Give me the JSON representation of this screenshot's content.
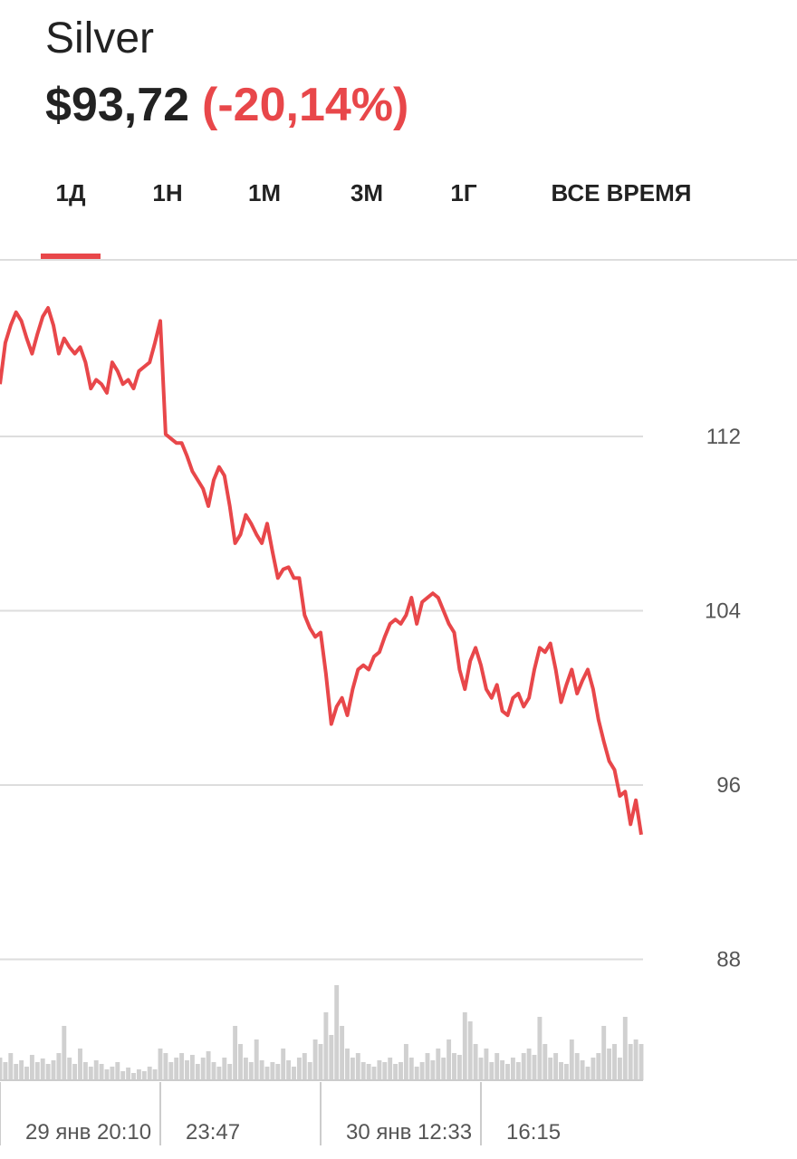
{
  "header": {
    "title": "Silver",
    "price": "$93,72",
    "change": "(-20,14%)"
  },
  "tabs": {
    "items": [
      "1Д",
      "1Н",
      "1М",
      "3М",
      "1Г",
      "ВСЕ ВРЕМЯ"
    ],
    "active": 0
  },
  "chart_data": {
    "type": "line",
    "color": "#e8474a",
    "values": [
      114.4,
      116.3,
      117.1,
      117.7,
      117.3,
      116.5,
      115.8,
      116.7,
      117.5,
      117.9,
      117.1,
      115.8,
      116.5,
      116.1,
      115.8,
      116.1,
      115.4,
      114.2,
      114.6,
      114.4,
      114.0,
      115.4,
      115.0,
      114.4,
      114.6,
      114.2,
      115.0,
      115.2,
      115.4,
      116.3,
      117.3,
      112.1,
      111.9,
      111.7,
      111.7,
      111.1,
      110.4,
      110.0,
      109.6,
      108.8,
      110.0,
      110.6,
      110.2,
      108.8,
      107.1,
      107.5,
      108.4,
      108.0,
      107.5,
      107.1,
      108.0,
      106.7,
      105.5,
      105.9,
      106.0,
      105.5,
      105.5,
      103.8,
      103.2,
      102.8,
      103.0,
      101.1,
      98.8,
      99.6,
      100.0,
      99.2,
      100.4,
      101.3,
      101.5,
      101.3,
      101.9,
      102.1,
      102.8,
      103.4,
      103.6,
      103.4,
      103.8,
      104.6,
      103.4,
      104.4,
      104.6,
      104.8,
      104.6,
      104.0,
      103.4,
      103.0,
      101.3,
      100.4,
      101.7,
      102.3,
      101.5,
      100.4,
      100.0,
      100.6,
      99.4,
      99.2,
      100.0,
      100.2,
      99.6,
      100.0,
      101.3,
      102.3,
      102.1,
      102.5,
      101.3,
      99.8,
      100.6,
      101.3,
      100.2,
      100.8,
      101.3,
      100.4,
      99.0,
      98.0,
      97.1,
      96.7,
      95.5,
      95.7,
      94.2,
      95.3,
      93.72
    ],
    "volume": [
      25,
      20,
      30,
      18,
      22,
      15,
      28,
      20,
      24,
      18,
      22,
      30,
      60,
      25,
      18,
      35,
      20,
      15,
      22,
      18,
      12,
      15,
      20,
      10,
      14,
      8,
      12,
      10,
      15,
      12,
      35,
      30,
      20,
      25,
      30,
      22,
      28,
      18,
      25,
      32,
      20,
      15,
      25,
      18,
      60,
      40,
      25,
      20,
      45,
      22,
      15,
      20,
      18,
      35,
      22,
      15,
      25,
      30,
      20,
      45,
      40,
      75,
      50,
      105,
      60,
      35,
      25,
      30,
      20,
      18,
      15,
      22,
      20,
      25,
      18,
      20,
      40,
      25,
      15,
      20,
      30,
      22,
      35,
      25,
      45,
      30,
      28,
      75,
      65,
      40,
      25,
      35,
      20,
      30,
      22,
      18,
      25,
      20,
      30,
      35,
      28,
      70,
      40,
      25,
      30,
      20,
      18,
      45,
      30,
      22,
      15,
      25,
      30,
      60,
      35,
      40,
      25,
      70,
      40,
      45,
      40
    ],
    "volume_color": "#d0d0d0",
    "xlim": [
      0,
      120
    ],
    "xticks": [
      {
        "value": 0,
        "label": "29 янв 20:10"
      },
      {
        "value": 30,
        "label": "23:47"
      },
      {
        "value": 60,
        "label": "30 янв 12:33"
      },
      {
        "value": 90,
        "label": "16:15"
      }
    ],
    "ylim": [
      88,
      120
    ],
    "yticks": [
      88,
      96,
      104,
      112
    ],
    "grid": true
  }
}
